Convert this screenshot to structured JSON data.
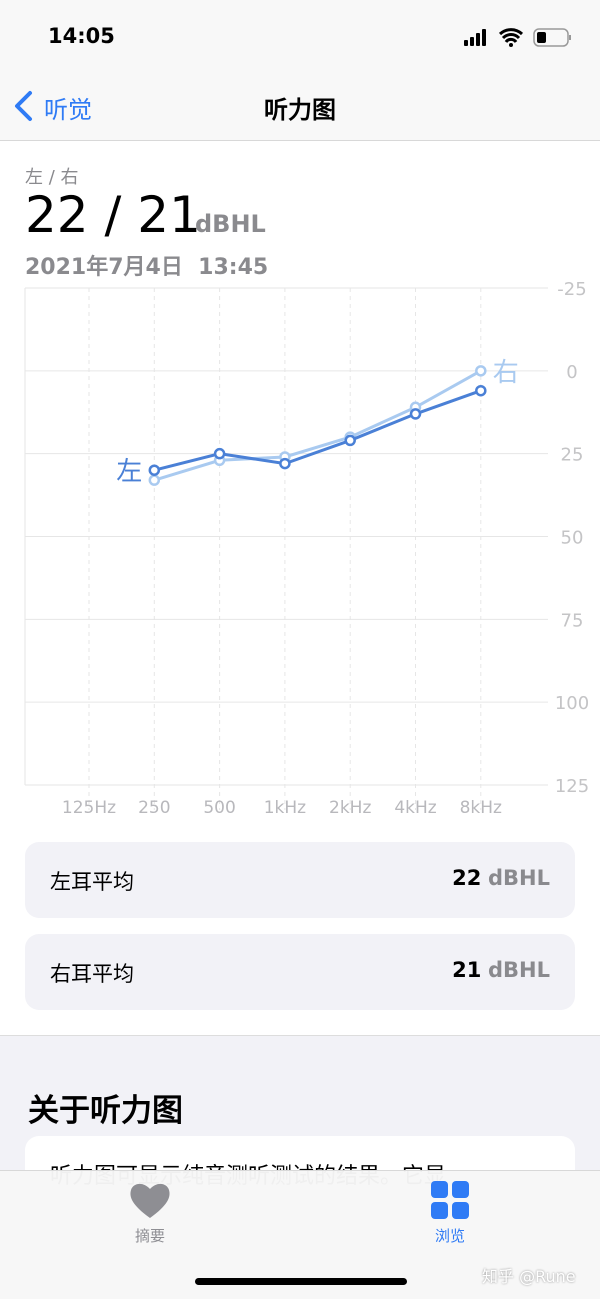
{
  "status_bar": {
    "time": "14:05"
  },
  "nav": {
    "back": "听觉",
    "title": "听力图"
  },
  "header": {
    "label": "左 / 右",
    "value": "22 / 21",
    "unit": "dBHL",
    "date": "2021年7月4日  13:45"
  },
  "chart_data": {
    "type": "line",
    "categories": [
      "125Hz",
      "250",
      "500",
      "1kHz",
      "2kHz",
      "4kHz",
      "8kHz"
    ],
    "series": [
      {
        "name": "左",
        "color": "#4a80d6",
        "values": [
          null,
          30,
          25,
          28,
          21,
          13,
          6
        ]
      },
      {
        "name": "右",
        "color": "#a9caf0",
        "values": [
          null,
          33,
          27,
          26,
          20,
          11,
          0
        ]
      }
    ],
    "ylim": [
      -25,
      125
    ],
    "yticks": [
      -25,
      0,
      25,
      50,
      75,
      100,
      125
    ],
    "y_inverted": true,
    "grid": true
  },
  "averages": [
    {
      "label": "左耳平均",
      "value": 22,
      "unit": "dBHL"
    },
    {
      "label": "右耳平均",
      "value": 21,
      "unit": "dBHL"
    }
  ],
  "about": {
    "title": "关于听力图",
    "text": "听力图可显示纯音测听测试的结果。它显"
  },
  "tab_bar": {
    "tabs": [
      "摘要",
      "浏览"
    ]
  },
  "watermark": "知乎 @Rune"
}
